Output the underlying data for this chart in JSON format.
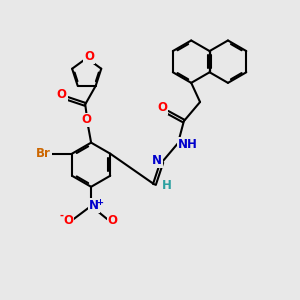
{
  "background_color": "#e8e8e8",
  "figsize": [
    3.0,
    3.0
  ],
  "dpi": 100,
  "line_color": "#000000",
  "line_width": 1.5,
  "atom_colors": {
    "O": "#ff0000",
    "N": "#0000cc",
    "Br": "#cc6600",
    "H": "#2aa0a0",
    "C": "#000000"
  },
  "font_size": 8.5
}
